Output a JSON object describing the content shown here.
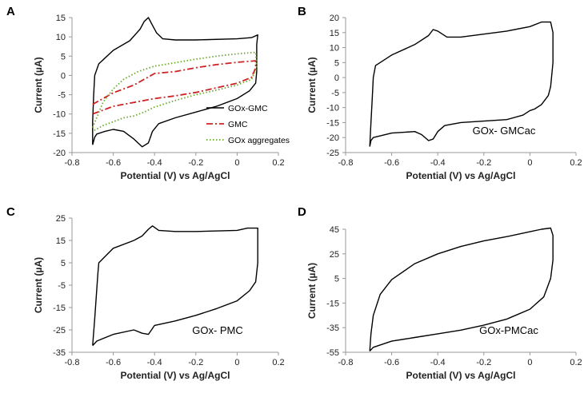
{
  "chart_data": [
    {
      "panel": "A",
      "type": "line",
      "xlabel": "Potential (V) vs Ag/AgCl",
      "ylabel": "Current (µA)",
      "xlim": [
        -0.8,
        0.2
      ],
      "ylim": [
        -20,
        15
      ],
      "xticks": [
        -0.8,
        -0.6,
        -0.4,
        -0.2,
        0,
        0.2
      ],
      "yticks": [
        -20,
        -15,
        -10,
        -5,
        0,
        5,
        10,
        15
      ],
      "legend_position": "bottom-right",
      "series": [
        {
          "name": "GOx-GMC",
          "color": "#000000",
          "dash": "solid",
          "points": [
            [
              -0.7,
              -18
            ],
            [
              -0.69,
              -16
            ],
            [
              -0.68,
              -15.2
            ],
            [
              -0.64,
              -14.5
            ],
            [
              -0.6,
              -14
            ],
            [
              -0.55,
              -14.5
            ],
            [
              -0.5,
              -16.5
            ],
            [
              -0.46,
              -18.5
            ],
            [
              -0.43,
              -17.5
            ],
            [
              -0.41,
              -14.5
            ],
            [
              -0.38,
              -12.5
            ],
            [
              -0.3,
              -11
            ],
            [
              -0.2,
              -9.5
            ],
            [
              -0.1,
              -8
            ],
            [
              0,
              -6
            ],
            [
              0.06,
              -4
            ],
            [
              0.09,
              -2
            ],
            [
              0.095,
              1
            ],
            [
              0.095,
              8
            ],
            [
              0.1,
              10.5
            ],
            [
              0.07,
              9.8
            ],
            [
              0,
              9.5
            ],
            [
              -0.2,
              9.2
            ],
            [
              -0.3,
              9.2
            ],
            [
              -0.36,
              9.5
            ],
            [
              -0.39,
              11
            ],
            [
              -0.41,
              13
            ],
            [
              -0.43,
              15
            ],
            [
              -0.45,
              14
            ],
            [
              -0.47,
              12
            ],
            [
              -0.52,
              9
            ],
            [
              -0.6,
              6.5
            ],
            [
              -0.67,
              3
            ],
            [
              -0.69,
              0
            ],
            [
              -0.695,
              -5
            ],
            [
              -0.7,
              -12
            ],
            [
              -0.7,
              -18
            ]
          ]
        },
        {
          "name": "GMC",
          "color": "#cc2222",
          "dash": "dashdot",
          "points": [
            [
              -0.7,
              -7.5
            ],
            [
              -0.6,
              -4.5
            ],
            [
              -0.5,
              -2.5
            ],
            [
              -0.4,
              0.5
            ],
            [
              -0.3,
              1
            ],
            [
              -0.2,
              2
            ],
            [
              -0.1,
              2.8
            ],
            [
              0,
              3.4
            ],
            [
              0.09,
              3.8
            ],
            [
              0.09,
              2
            ],
            [
              0.07,
              -0.5
            ],
            [
              0,
              -2
            ],
            [
              -0.1,
              -3.2
            ],
            [
              -0.2,
              -4.4
            ],
            [
              -0.3,
              -5.3
            ],
            [
              -0.4,
              -6
            ],
            [
              -0.5,
              -7
            ],
            [
              -0.6,
              -8
            ],
            [
              -0.7,
              -10
            ]
          ]
        },
        {
          "name": "GOx aggregates",
          "color": "#6aaa2a",
          "dash": "dotted",
          "points": [
            [
              -0.7,
              -13.5
            ],
            [
              -0.65,
              -7
            ],
            [
              -0.6,
              -3.5
            ],
            [
              -0.55,
              -1
            ],
            [
              -0.48,
              1
            ],
            [
              -0.4,
              2.4
            ],
            [
              -0.3,
              3.3
            ],
            [
              -0.2,
              4.2
            ],
            [
              -0.1,
              5
            ],
            [
              0,
              5.6
            ],
            [
              0.09,
              6
            ],
            [
              0.095,
              2
            ],
            [
              0.07,
              -1
            ],
            [
              0,
              -2.5
            ],
            [
              -0.1,
              -3.8
            ],
            [
              -0.2,
              -5
            ],
            [
              -0.3,
              -6.5
            ],
            [
              -0.4,
              -8.2
            ],
            [
              -0.45,
              -9.5
            ],
            [
              -0.5,
              -10.5
            ],
            [
              -0.55,
              -11
            ],
            [
              -0.6,
              -12
            ],
            [
              -0.65,
              -13
            ],
            [
              -0.7,
              -14.5
            ]
          ]
        }
      ]
    },
    {
      "panel": "B",
      "type": "line",
      "xlabel": "Potential (V) vs Ag/AgCl",
      "ylabel": "Current (µA)",
      "xlim": [
        -0.8,
        0.2
      ],
      "ylim": [
        -25,
        20
      ],
      "xticks": [
        -0.8,
        -0.6,
        -0.4,
        -0.2,
        0,
        0.2
      ],
      "yticks": [
        -25,
        -20,
        -15,
        -10,
        -5,
        0,
        5,
        10,
        15,
        20
      ],
      "annotation": "GOx- GMCac",
      "series": [
        {
          "name": "GOx- GMCac",
          "color": "#000000",
          "dash": "solid",
          "points": [
            [
              -0.695,
              -23
            ],
            [
              -0.69,
              -21
            ],
            [
              -0.68,
              -20
            ],
            [
              -0.6,
              -18.5
            ],
            [
              -0.5,
              -18
            ],
            [
              -0.47,
              -19
            ],
            [
              -0.44,
              -21
            ],
            [
              -0.42,
              -20.5
            ],
            [
              -0.4,
              -18
            ],
            [
              -0.37,
              -16
            ],
            [
              -0.3,
              -15
            ],
            [
              -0.2,
              -14.5
            ],
            [
              -0.1,
              -14
            ],
            [
              -0.03,
              -12.5
            ],
            [
              0,
              -11
            ],
            [
              0.02,
              -10.5
            ],
            [
              0.05,
              -9
            ],
            [
              0.08,
              -6
            ],
            [
              0.09,
              -3
            ],
            [
              0.1,
              5
            ],
            [
              0.1,
              15
            ],
            [
              0.09,
              18.5
            ],
            [
              0.05,
              18.5
            ],
            [
              0,
              17
            ],
            [
              -0.1,
              15.5
            ],
            [
              -0.2,
              14.5
            ],
            [
              -0.3,
              13.5
            ],
            [
              -0.36,
              13.5
            ],
            [
              -0.4,
              15.5
            ],
            [
              -0.42,
              16
            ],
            [
              -0.44,
              14
            ],
            [
              -0.5,
              11
            ],
            [
              -0.6,
              7.5
            ],
            [
              -0.67,
              4
            ],
            [
              -0.68,
              0
            ],
            [
              -0.685,
              -8
            ],
            [
              -0.69,
              -15
            ],
            [
              -0.695,
              -23
            ]
          ]
        }
      ]
    },
    {
      "panel": "C",
      "type": "line",
      "xlabel": "Potential (V) vs Ag/AgCl",
      "ylabel": "Current (µA)",
      "xlim": [
        -0.8,
        0.2
      ],
      "ylim": [
        -35,
        25
      ],
      "xticks": [
        -0.8,
        -0.6,
        -0.4,
        -0.2,
        0,
        0.2
      ],
      "yticks": [
        -35,
        -25,
        -15,
        -5,
        5,
        15,
        25
      ],
      "annotation": "GOx- PMC",
      "series": [
        {
          "name": "GOx- PMC",
          "color": "#000000",
          "dash": "solid",
          "points": [
            [
              -0.7,
              -32
            ],
            [
              -0.68,
              -30
            ],
            [
              -0.6,
              -27
            ],
            [
              -0.5,
              -25
            ],
            [
              -0.46,
              -26.5
            ],
            [
              -0.43,
              -27
            ],
            [
              -0.4,
              -23
            ],
            [
              -0.3,
              -21
            ],
            [
              -0.2,
              -18.5
            ],
            [
              -0.1,
              -15.5
            ],
            [
              0,
              -12
            ],
            [
              0.06,
              -7.5
            ],
            [
              0.09,
              -3.5
            ],
            [
              0.1,
              5
            ],
            [
              0.1,
              20.5
            ],
            [
              0.05,
              20.5
            ],
            [
              0,
              19.5
            ],
            [
              -0.2,
              19
            ],
            [
              -0.3,
              19
            ],
            [
              -0.38,
              19.5
            ],
            [
              -0.41,
              21.5
            ],
            [
              -0.43,
              20
            ],
            [
              -0.46,
              17
            ],
            [
              -0.5,
              15
            ],
            [
              -0.6,
              11.5
            ],
            [
              -0.67,
              5
            ],
            [
              -0.675,
              0
            ],
            [
              -0.69,
              -20
            ],
            [
              -0.7,
              -32
            ]
          ]
        }
      ]
    },
    {
      "panel": "D",
      "type": "line",
      "xlabel": "Potential (V) vs Ag/AgCl",
      "ylabel": "Current (µA)",
      "xlim": [
        -0.8,
        0.2
      ],
      "ylim": [
        -55,
        45
      ],
      "xticks": [
        -0.8,
        -0.6,
        -0.4,
        -0.2,
        0,
        0.2
      ],
      "yticks": [
        -55,
        -35,
        -15,
        5,
        25,
        45
      ],
      "annotation": "GOx-PMCac",
      "series": [
        {
          "name": "GOx-PMCac",
          "color": "#000000",
          "dash": "solid",
          "points": [
            [
              -0.695,
              -54
            ],
            [
              -0.68,
              -51
            ],
            [
              -0.6,
              -46
            ],
            [
              -0.5,
              -43
            ],
            [
              -0.4,
              -40
            ],
            [
              -0.3,
              -37
            ],
            [
              -0.2,
              -33
            ],
            [
              -0.1,
              -28
            ],
            [
              0,
              -20
            ],
            [
              0.06,
              -10
            ],
            [
              0.09,
              5
            ],
            [
              0.1,
              20
            ],
            [
              0.1,
              40
            ],
            [
              0.09,
              46
            ],
            [
              0.05,
              45
            ],
            [
              0,
              43
            ],
            [
              -0.1,
              39
            ],
            [
              -0.2,
              35.5
            ],
            [
              -0.3,
              31
            ],
            [
              -0.4,
              25
            ],
            [
              -0.5,
              17
            ],
            [
              -0.6,
              4
            ],
            [
              -0.65,
              -8
            ],
            [
              -0.68,
              -25
            ],
            [
              -0.69,
              -40
            ],
            [
              -0.695,
              -54
            ]
          ]
        }
      ]
    }
  ]
}
